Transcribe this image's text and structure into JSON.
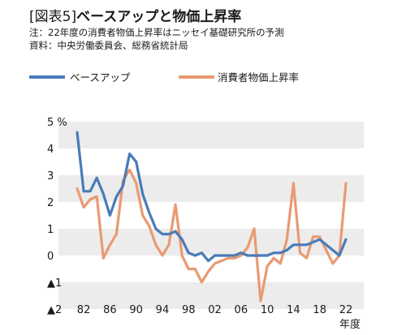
{
  "header": {
    "tag": "[図表5]",
    "title": "ベースアップと物価上昇率",
    "note1": "注：22年度の消費者物価上昇率はニッセイ基礎研究所の予測",
    "note2": "資料：中央労働委員会、総務省統計局"
  },
  "chart_data": {
    "type": "line",
    "x": [
      1981,
      1982,
      1983,
      1984,
      1985,
      1986,
      1987,
      1988,
      1989,
      1990,
      1991,
      1992,
      1993,
      1994,
      1995,
      1996,
      1997,
      1998,
      1999,
      2000,
      2001,
      2002,
      2003,
      2004,
      2005,
      2006,
      2007,
      2008,
      2009,
      2010,
      2011,
      2012,
      2013,
      2014,
      2015,
      2016,
      2017,
      2018,
      2019,
      2020,
      2021,
      2022
    ],
    "series": [
      {
        "name": "ベースアップ",
        "color": "#4a7bb7",
        "values": [
          4.6,
          2.4,
          2.4,
          2.9,
          2.3,
          1.5,
          2.2,
          2.6,
          3.8,
          3.5,
          2.3,
          1.6,
          1.0,
          0.8,
          0.8,
          0.9,
          0.6,
          0.1,
          0.0,
          0.1,
          -0.2,
          0.0,
          0.0,
          0.0,
          0.0,
          0.1,
          0.0,
          0.0,
          0.0,
          0.0,
          0.1,
          0.1,
          0.2,
          0.4,
          0.4,
          0.4,
          0.5,
          0.6,
          0.4,
          0.2,
          0.0,
          0.6
        ]
      },
      {
        "name": "消費者物価上昇率",
        "color": "#e99a72",
        "values": [
          2.5,
          1.8,
          2.1,
          2.2,
          -0.1,
          0.4,
          0.8,
          2.8,
          3.2,
          2.7,
          1.5,
          1.1,
          0.4,
          0.0,
          0.4,
          1.9,
          0.0,
          -0.5,
          -0.5,
          -1.0,
          -0.6,
          -0.3,
          -0.2,
          -0.1,
          -0.1,
          0.0,
          0.3,
          1.0,
          -1.7,
          -0.4,
          -0.1,
          -0.3,
          0.6,
          2.7,
          0.1,
          -0.1,
          0.7,
          0.7,
          0.2,
          -0.3,
          0.0,
          2.7
        ]
      }
    ],
    "yticks": [
      {
        "v": 5,
        "label": "5 %"
      },
      {
        "v": 4,
        "label": "4"
      },
      {
        "v": 3,
        "label": "3"
      },
      {
        "v": 2,
        "label": "2"
      },
      {
        "v": 1,
        "label": "1"
      },
      {
        "v": 0,
        "label": "0"
      },
      {
        "v": -1,
        "label": "▲1"
      },
      {
        "v": -2,
        "label": "▲2"
      }
    ],
    "xticks": [
      {
        "v": 1982,
        "label": "82"
      },
      {
        "v": 1986,
        "label": "86"
      },
      {
        "v": 1990,
        "label": "90"
      },
      {
        "v": 1994,
        "label": "94"
      },
      {
        "v": 1998,
        "label": "98"
      },
      {
        "v": 2002,
        "label": "02"
      },
      {
        "v": 2006,
        "label": "06"
      },
      {
        "v": 2010,
        "label": "10"
      },
      {
        "v": 2014,
        "label": "14"
      },
      {
        "v": 2018,
        "label": "18"
      },
      {
        "v": 2022,
        "label": "22"
      }
    ],
    "xlabel": "年度",
    "ylim": [
      -2,
      5
    ],
    "xlim": [
      1981,
      2022
    ],
    "band_color": "#ececec",
    "legend_position": "top-left"
  }
}
